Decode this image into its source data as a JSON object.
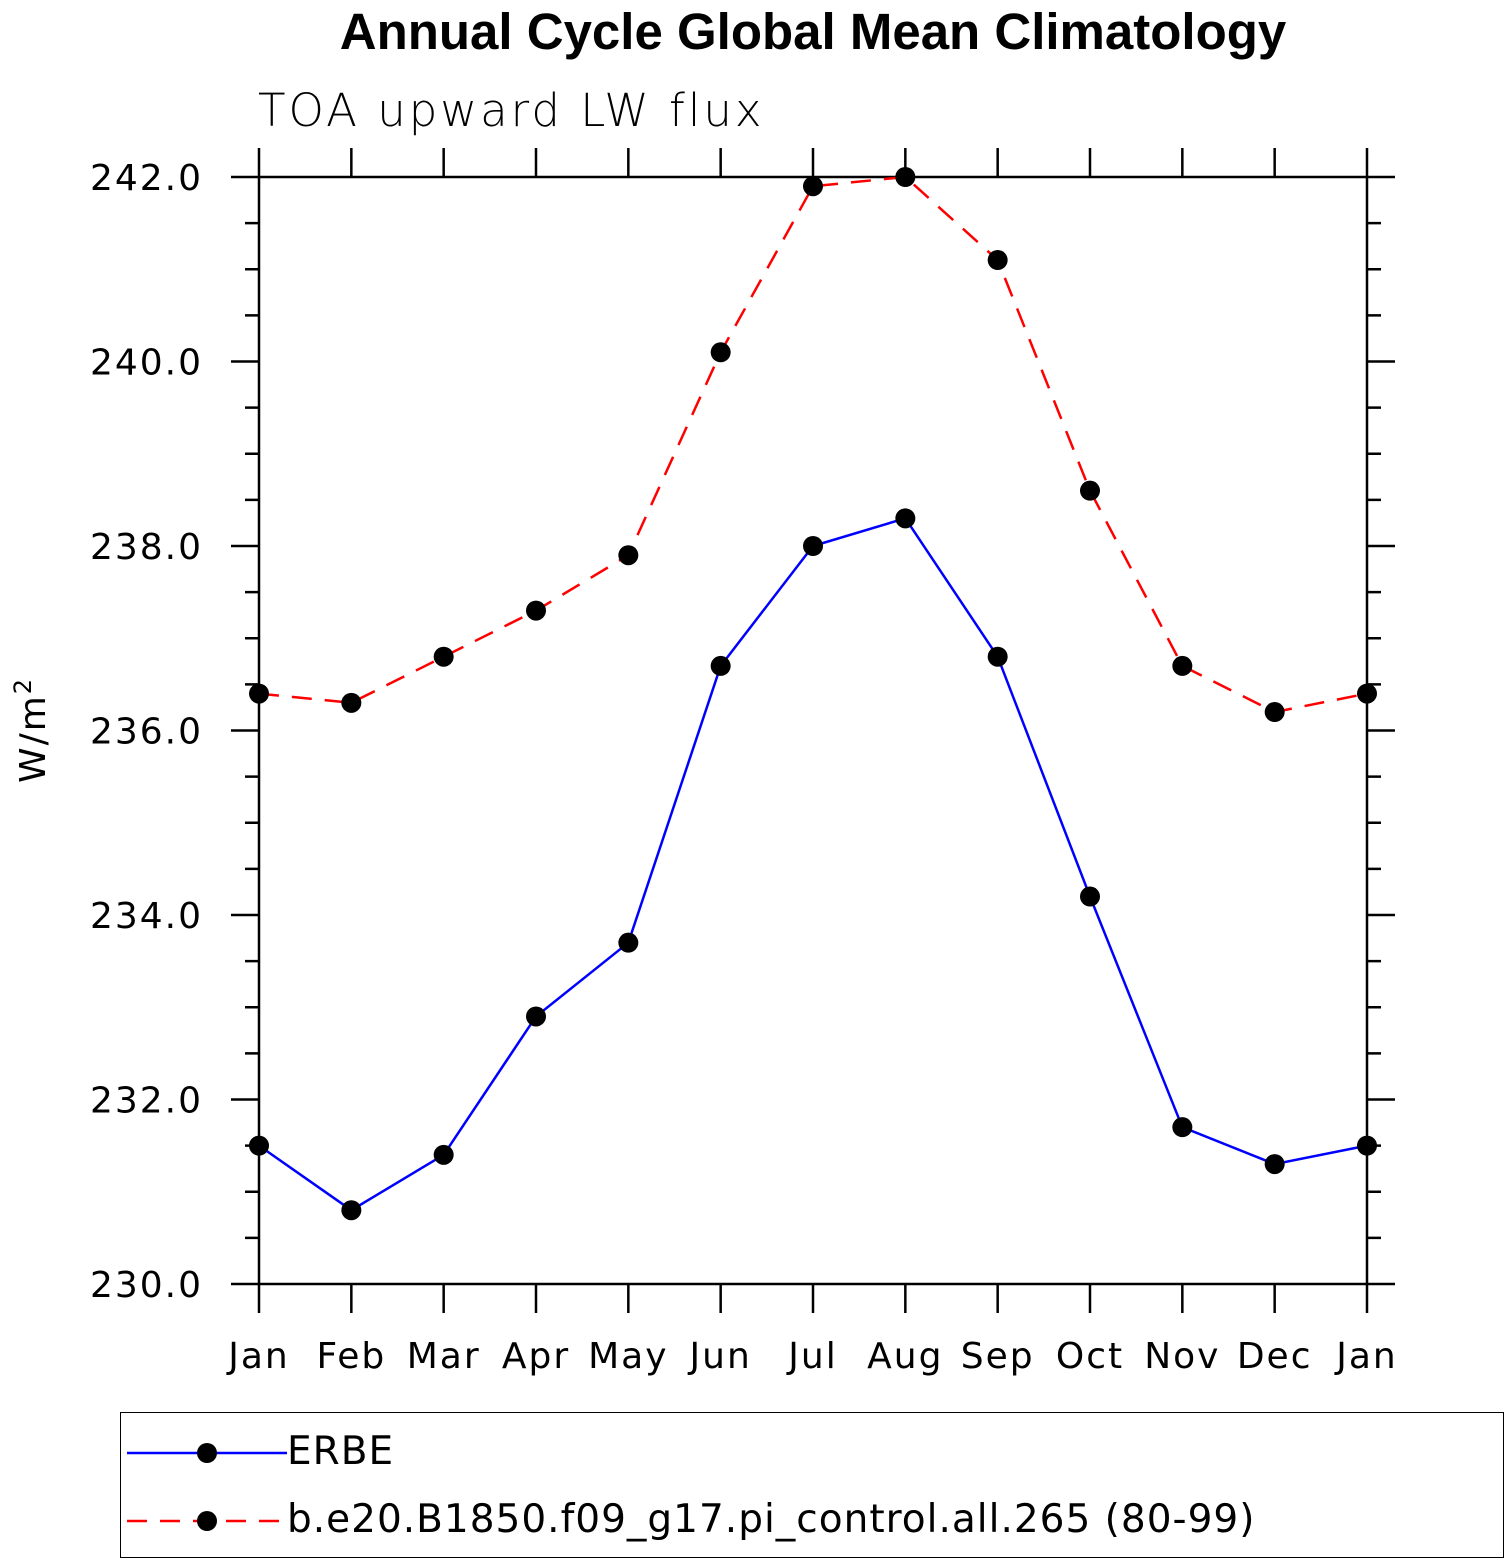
{
  "chart_data": {
    "type": "line",
    "title": "Annual Cycle Global Mean Climatology",
    "subtitle": "TOA upward LW flux",
    "xlabel": "",
    "ylabel": "W/m",
    "ylabel_superscript": "2",
    "ylim": [
      230.0,
      242.0
    ],
    "yticks": [
      "230.0",
      "232.0",
      "234.0",
      "236.0",
      "238.0",
      "240.0",
      "242.0"
    ],
    "categories": [
      "Jan",
      "Feb",
      "Mar",
      "Apr",
      "May",
      "Jun",
      "Jul",
      "Aug",
      "Sep",
      "Oct",
      "Nov",
      "Dec",
      "Jan"
    ],
    "series": [
      {
        "name": "ERBE",
        "color": "#0000ff",
        "dash": "solid",
        "values": [
          231.5,
          230.8,
          231.4,
          232.9,
          233.7,
          236.7,
          238.0,
          238.3,
          236.8,
          234.2,
          231.7,
          231.3,
          231.5
        ]
      },
      {
        "name": "b.e20.B1850.f09_g17.pi_control.all.265 (80-99)",
        "color": "#ff0000",
        "dash": "dashed",
        "values": [
          236.4,
          236.3,
          236.8,
          237.3,
          237.9,
          240.1,
          241.9,
          242.0,
          241.1,
          238.6,
          236.7,
          236.2,
          236.4
        ]
      }
    ],
    "legend_position": "bottom"
  }
}
